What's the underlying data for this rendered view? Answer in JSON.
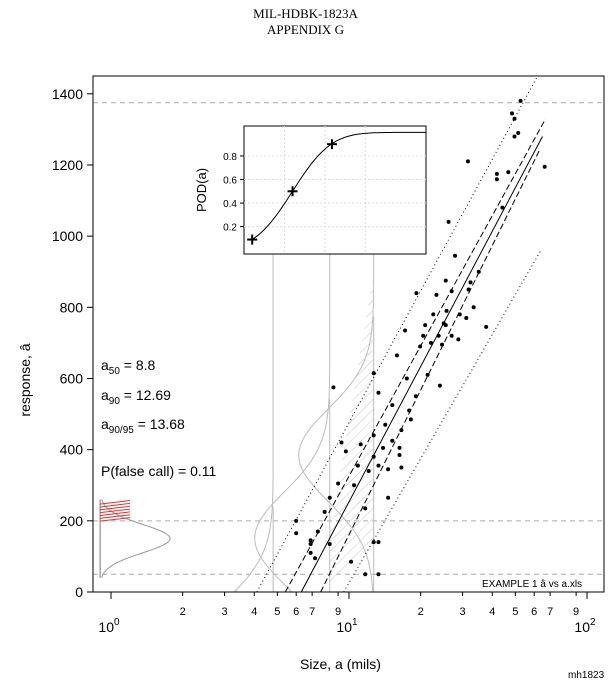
{
  "header": {
    "line1": "MIL-HDBK-1823A",
    "line2": "APPENDIX G"
  },
  "footer": {
    "code": "mh1823",
    "file_label": "EXAMPLE 1 â vs a.xls"
  },
  "stats": {
    "a50_prefix": "a",
    "a50_sub": "50",
    "a50_value": " = 8.8",
    "a90_prefix": "a",
    "a90_sub": "90",
    "a90_value": " = 12.69",
    "a9095_prefix": "a",
    "a9095_sub": "90/95",
    "a9095_value": " = 13.68",
    "pfc": "P(false call) = 0.11"
  },
  "chart_data": [
    {
      "type": "scatter",
      "title": "",
      "xlabel": "Size, a (mils)",
      "ylabel": "response, â",
      "xscale": "log",
      "xlim": [
        0.8,
        120
      ],
      "ylim": [
        0,
        1450
      ],
      "x_major_ticks": [
        {
          "v": 1,
          "base": "10",
          "exp": "0"
        },
        {
          "v": 10,
          "base": "10",
          "exp": "1"
        },
        {
          "v": 100,
          "base": "10",
          "exp": "2"
        }
      ],
      "x_minor_ticks": [
        {
          "v": 2,
          "label": "2"
        },
        {
          "v": 3,
          "label": "3"
        },
        {
          "v": 4,
          "label": "4"
        },
        {
          "v": 5,
          "label": "5"
        },
        {
          "v": 6,
          "label": "6"
        },
        {
          "v": 7,
          "label": "7"
        },
        {
          "v": 9,
          "label": "9"
        },
        {
          "v": 20,
          "label": "2"
        },
        {
          "v": 30,
          "label": "3"
        },
        {
          "v": 40,
          "label": "4"
        },
        {
          "v": 50,
          "label": "5"
        },
        {
          "v": 60,
          "label": "6"
        },
        {
          "v": 70,
          "label": "7"
        },
        {
          "v": 90,
          "label": "9"
        }
      ],
      "y_ticks": [
        0,
        200,
        400,
        600,
        800,
        1000,
        1200,
        1400
      ],
      "horizontal_lines": [
        1375,
        200,
        50
      ],
      "fit_line": [
        [
          6.3,
          0
        ],
        [
          65,
          1280
        ]
      ],
      "confidence_bounds": [
        [
          [
            7.6,
            0
          ],
          [
            63,
            1240
          ]
        ],
        [
          [
            5.4,
            0
          ],
          [
            67,
            1330
          ]
        ]
      ],
      "prediction_bounds": [
        [
          [
            9.5,
            0
          ],
          [
            64,
            960
          ]
        ],
        [
          [
            4.1,
            0
          ],
          [
            62,
            1450
          ]
        ]
      ],
      "points": [
        [
          6.0,
          200
        ],
        [
          6.0,
          165
        ],
        [
          6.9,
          135
        ],
        [
          6.9,
          145
        ],
        [
          6.9,
          110
        ],
        [
          7.2,
          95
        ],
        [
          7.4,
          170
        ],
        [
          7.9,
          225
        ],
        [
          8.3,
          135
        ],
        [
          8.3,
          265
        ],
        [
          9.0,
          305
        ],
        [
          8.6,
          575
        ],
        [
          9.3,
          420
        ],
        [
          9.7,
          395
        ],
        [
          10.2,
          85
        ],
        [
          10.5,
          300
        ],
        [
          10.9,
          355
        ],
        [
          11.2,
          415
        ],
        [
          11.7,
          235
        ],
        [
          11.7,
          50
        ],
        [
          12.1,
          340
        ],
        [
          12.7,
          615
        ],
        [
          12.7,
          440
        ],
        [
          12.7,
          140
        ],
        [
          12.7,
          380
        ],
        [
          13.3,
          560
        ],
        [
          13.3,
          355
        ],
        [
          13.3,
          140
        ],
        [
          13.3,
          50
        ],
        [
          13.9,
          405
        ],
        [
          14.2,
          470
        ],
        [
          14.6,
          265
        ],
        [
          14.6,
          345
        ],
        [
          15.2,
          525
        ],
        [
          15.2,
          425
        ],
        [
          15.9,
          665
        ],
        [
          16.3,
          405
        ],
        [
          16.3,
          385
        ],
        [
          16.6,
          455
        ],
        [
          16.6,
          350
        ],
        [
          17.5,
          600
        ],
        [
          17.2,
          735
        ],
        [
          17.9,
          510
        ],
        [
          18.2,
          485
        ],
        [
          19.1,
          550
        ],
        [
          19.2,
          840
        ],
        [
          19.9,
          690
        ],
        [
          20.5,
          720
        ],
        [
          20.9,
          750
        ],
        [
          21.4,
          610
        ],
        [
          22.1,
          700
        ],
        [
          22.6,
          780
        ],
        [
          23.3,
          835
        ],
        [
          23.8,
          720
        ],
        [
          24.1,
          580
        ],
        [
          24.6,
          695
        ],
        [
          25.0,
          755
        ],
        [
          25.5,
          750
        ],
        [
          25.5,
          875
        ],
        [
          25.7,
          790
        ],
        [
          26.2,
          1040
        ],
        [
          27.0,
          720
        ],
        [
          27.0,
          845
        ],
        [
          27.9,
          945
        ],
        [
          28.8,
          710
        ],
        [
          29.2,
          780
        ],
        [
          31.1,
          770
        ],
        [
          31.6,
          1210
        ],
        [
          32.4,
          870
        ],
        [
          31.8,
          850
        ],
        [
          33.4,
          800
        ],
        [
          35.1,
          900
        ],
        [
          37.7,
          745
        ],
        [
          41.8,
          1160
        ],
        [
          41.8,
          1175
        ],
        [
          44.1,
          1080
        ],
        [
          46.7,
          1180
        ],
        [
          48.4,
          1345
        ],
        [
          49.6,
          1280
        ],
        [
          49.6,
          1330
        ],
        [
          51.4,
          1290
        ],
        [
          52.6,
          1380
        ],
        [
          66.4,
          1195
        ]
      ]
    },
    {
      "type": "line",
      "ylabel": "POD(a)",
      "y_ticks": [
        "0.2",
        "0.4",
        "0.6",
        "0.8"
      ],
      "xlim": [
        4,
        22
      ],
      "ylim": [
        0,
        1
      ],
      "curve": {
        "mu": 8.8,
        "sigma": 2.99
      },
      "markers": [
        [
          4.81,
          0.09
        ],
        [
          8.8,
          0.5
        ],
        [
          12.7,
          0.9
        ]
      ]
    }
  ]
}
